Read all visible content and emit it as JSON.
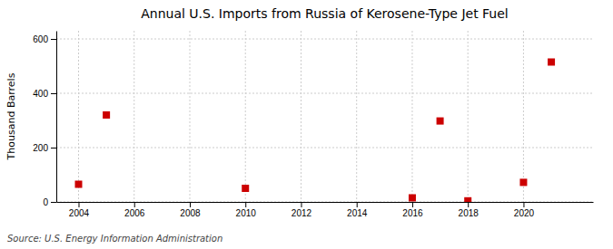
{
  "chart_data": {
    "type": "scatter",
    "title": "Annual U.S. Imports from Russia of Kerosene-Type Jet Fuel",
    "ylabel": "Thousand Barrels",
    "source": "Source: U.S. Energy Information Administration",
    "x": [
      2004,
      2005,
      2010,
      2016,
      2017,
      2018,
      2020,
      2021
    ],
    "values": [
      65,
      320,
      50,
      15,
      298,
      4,
      72,
      515
    ],
    "color": "#cc0000",
    "marker": "square",
    "xlim": [
      2003.2,
      2022.5
    ],
    "ylim": [
      0,
      630
    ],
    "xticks": [
      2004,
      2006,
      2008,
      2010,
      2012,
      2014,
      2016,
      2018,
      2020
    ],
    "yticks": [
      0,
      200,
      400,
      600
    ],
    "grid": true
  }
}
